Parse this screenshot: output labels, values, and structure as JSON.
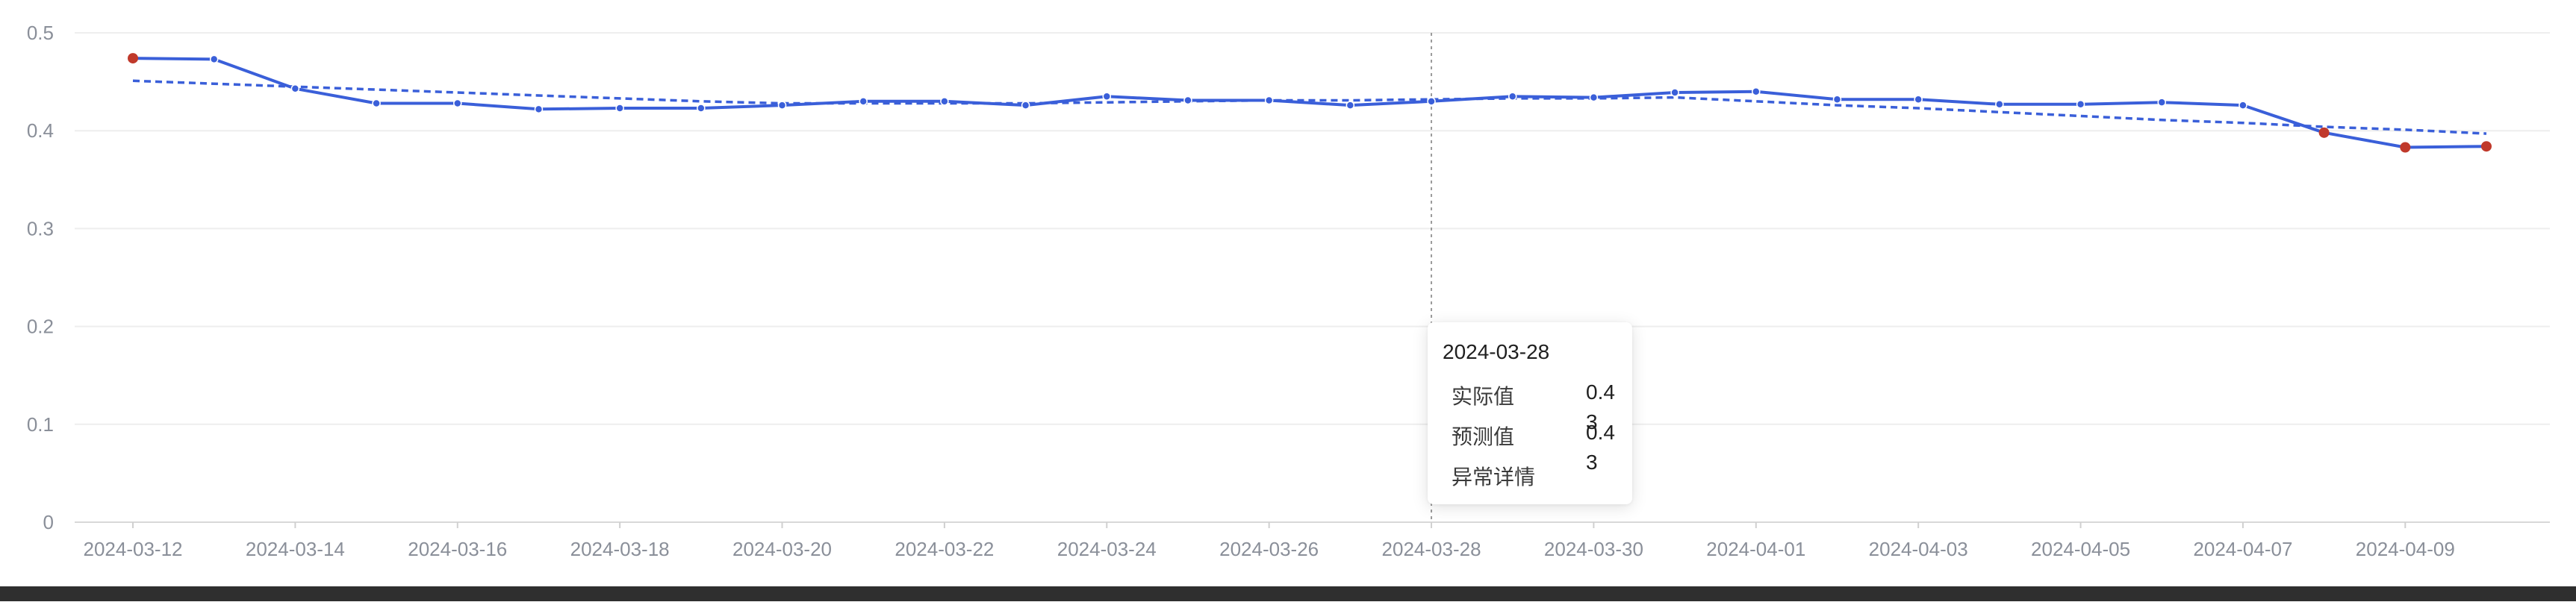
{
  "chart_data": {
    "type": "line",
    "x": [
      "2024-03-12",
      "2024-03-13",
      "2024-03-14",
      "2024-03-15",
      "2024-03-16",
      "2024-03-17",
      "2024-03-18",
      "2024-03-19",
      "2024-03-20",
      "2024-03-21",
      "2024-03-22",
      "2024-03-23",
      "2024-03-24",
      "2024-03-25",
      "2024-03-26",
      "2024-03-27",
      "2024-03-28",
      "2024-03-29",
      "2024-03-30",
      "2024-03-31",
      "2024-04-01",
      "2024-04-02",
      "2024-04-03",
      "2024-04-04",
      "2024-04-05",
      "2024-04-06",
      "2024-04-07",
      "2024-04-08",
      "2024-04-09",
      "2024-04-10"
    ],
    "x_tick_labels": [
      "2024-03-12",
      "2024-03-14",
      "2024-03-16",
      "2024-03-18",
      "2024-03-20",
      "2024-03-22",
      "2024-03-24",
      "2024-03-26",
      "2024-03-28",
      "2024-03-30",
      "2024-04-01",
      "2024-04-03",
      "2024-04-05",
      "2024-04-07",
      "2024-04-09"
    ],
    "y_tick_labels": [
      "0",
      "0.1",
      "0.2",
      "0.3",
      "0.4",
      "0.5"
    ],
    "ylim": [
      0,
      0.5
    ],
    "grid": true,
    "series": [
      {
        "name": "实际值",
        "style": "solid",
        "color": "#3a5fd9",
        "values": [
          0.474,
          0.473,
          0.443,
          0.428,
          0.428,
          0.422,
          0.423,
          0.423,
          0.426,
          0.43,
          0.43,
          0.426,
          0.435,
          0.431,
          0.431,
          0.426,
          0.43,
          0.435,
          0.434,
          0.439,
          0.44,
          0.432,
          0.432,
          0.427,
          0.427,
          0.429,
          0.426,
          0.398,
          0.383,
          0.384
        ]
      },
      {
        "name": "预测值",
        "style": "dashed",
        "color": "#3a5fd9",
        "values": [
          0.451,
          0.448,
          0.445,
          0.442,
          0.439,
          0.436,
          0.433,
          0.43,
          0.428,
          0.428,
          0.428,
          0.428,
          0.429,
          0.43,
          0.431,
          0.431,
          0.432,
          0.433,
          0.433,
          0.434,
          0.43,
          0.426,
          0.423,
          0.419,
          0.415,
          0.411,
          0.408,
          0.404,
          0.401,
          0.397
        ]
      }
    ],
    "anomaly_points": [
      "2024-03-12",
      "2024-04-08",
      "2024-04-09",
      "2024-04-10"
    ],
    "anomaly_color": "#c0392b",
    "crosshair_x": "2024-03-28"
  },
  "tooltip": {
    "date": "2024-03-28",
    "rows": [
      {
        "label": "实际值",
        "value": "0.43"
      },
      {
        "label": "预测值",
        "value": "0.43"
      },
      {
        "label": "异常详情",
        "value": ""
      }
    ]
  }
}
